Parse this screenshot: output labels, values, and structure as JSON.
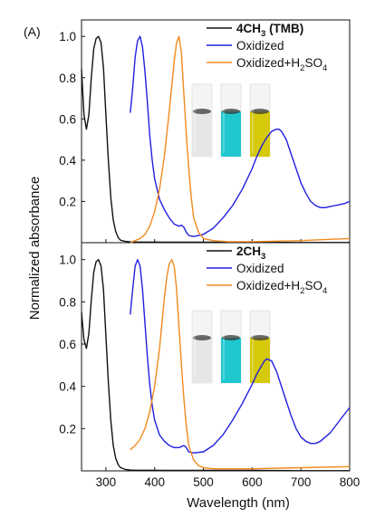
{
  "panel_letter": "(A)",
  "colors": {
    "black": "#111111",
    "blue": "#1f1fe0",
    "orange": "#f28a1e",
    "vial_clear": "#e6e6e6",
    "vial_blue": "#1fc8cf",
    "vial_yellow": "#d6c90a"
  },
  "chart_data": [
    {
      "type": "line",
      "panel": "top",
      "xlim": [
        250,
        800
      ],
      "ylim": [
        0,
        1.08
      ],
      "xlabel": "Wavelength (nm)",
      "ylabel": "Normalized absorbance",
      "yticks": [
        "0.2",
        "0.4",
        "0.6",
        "0.8",
        "1.0"
      ],
      "legend": {
        "placement": "top-right"
      },
      "series": [
        {
          "name": "4CH3 (TMB)",
          "name_main": "4CH",
          "name_sub": "3",
          "name_tail": " (TMB)",
          "bold": true,
          "color_key": "black",
          "x": [
            250,
            255,
            260,
            265,
            270,
            275,
            280,
            285,
            290,
            295,
            300,
            305,
            310,
            315,
            320,
            325,
            330,
            340,
            350,
            360,
            380,
            420,
            500,
            600,
            700,
            800
          ],
          "y": [
            0.84,
            0.62,
            0.55,
            0.62,
            0.8,
            0.94,
            0.99,
            1.0,
            0.97,
            0.85,
            0.62,
            0.4,
            0.22,
            0.11,
            0.055,
            0.025,
            0.012,
            0.006,
            0.004,
            0.003,
            0.003,
            0.002,
            0.002,
            0.002,
            0.001,
            0.001
          ]
        },
        {
          "name": "Oxidized",
          "bold": false,
          "color_key": "blue",
          "x": [
            350,
            355,
            360,
            365,
            370,
            375,
            380,
            385,
            390,
            395,
            400,
            410,
            420,
            430,
            440,
            450,
            455,
            460,
            465,
            470,
            480,
            500,
            520,
            540,
            560,
            580,
            600,
            610,
            620,
            630,
            640,
            650,
            655,
            660,
            670,
            680,
            690,
            700,
            710,
            720,
            730,
            740,
            750,
            760,
            770,
            780,
            790,
            800
          ],
          "y": [
            0.63,
            0.75,
            0.9,
            0.98,
            1.0,
            0.95,
            0.83,
            0.68,
            0.52,
            0.4,
            0.31,
            0.21,
            0.16,
            0.12,
            0.09,
            0.08,
            0.085,
            0.075,
            0.05,
            0.035,
            0.03,
            0.04,
            0.07,
            0.12,
            0.18,
            0.26,
            0.36,
            0.42,
            0.47,
            0.51,
            0.54,
            0.55,
            0.55,
            0.54,
            0.5,
            0.43,
            0.36,
            0.29,
            0.24,
            0.2,
            0.18,
            0.17,
            0.17,
            0.175,
            0.18,
            0.185,
            0.19,
            0.2
          ]
        },
        {
          "name": "Oxidized+H2SO4",
          "name_main": "Oxidized+H",
          "name_sub": "2",
          "name_tail": "SO",
          "name_sub2": "4",
          "bold": false,
          "color_key": "orange",
          "x": [
            350,
            360,
            370,
            380,
            390,
            400,
            410,
            420,
            430,
            435,
            440,
            445,
            450,
            455,
            460,
            465,
            470,
            475,
            480,
            490,
            500,
            520,
            550,
            600,
            700,
            800
          ],
          "y": [
            0.0,
            0.01,
            0.02,
            0.04,
            0.08,
            0.15,
            0.26,
            0.42,
            0.64,
            0.76,
            0.88,
            0.97,
            1.0,
            0.92,
            0.72,
            0.52,
            0.36,
            0.22,
            0.12,
            0.05,
            0.02,
            0.01,
            0.005,
            0.005,
            0.01,
            0.02
          ]
        }
      ]
    },
    {
      "type": "line",
      "panel": "bottom",
      "xlim": [
        250,
        800
      ],
      "ylim": [
        0,
        1.08
      ],
      "xlabel": "Wavelength (nm)",
      "ylabel": "Normalized absorbance",
      "xticks": [
        "300",
        "400",
        "500",
        "600",
        "700",
        "800"
      ],
      "yticks": [
        "0.2",
        "0.4",
        "0.6",
        "0.8",
        "1.0"
      ],
      "legend": {
        "placement": "top-right"
      },
      "series": [
        {
          "name": "2CH3",
          "name_main": "2CH",
          "name_sub": "3",
          "name_tail": "",
          "bold": true,
          "color_key": "black",
          "x": [
            250,
            255,
            260,
            265,
            270,
            275,
            280,
            285,
            290,
            295,
            300,
            305,
            310,
            315,
            320,
            325,
            330,
            340,
            350,
            360,
            380,
            420,
            500,
            600,
            700,
            800
          ],
          "y": [
            0.75,
            0.62,
            0.58,
            0.65,
            0.81,
            0.94,
            0.99,
            1.0,
            0.97,
            0.86,
            0.64,
            0.42,
            0.24,
            0.12,
            0.06,
            0.03,
            0.015,
            0.007,
            0.004,
            0.003,
            0.003,
            0.002,
            0.002,
            0.002,
            0.001,
            0.001
          ]
        },
        {
          "name": "Oxidized",
          "bold": false,
          "color_key": "blue",
          "x": [
            350,
            355,
            360,
            365,
            370,
            375,
            380,
            385,
            390,
            395,
            400,
            410,
            420,
            430,
            440,
            450,
            460,
            465,
            470,
            480,
            500,
            520,
            540,
            560,
            580,
            600,
            610,
            620,
            625,
            630,
            640,
            650,
            660,
            670,
            680,
            690,
            700,
            710,
            720,
            730,
            740,
            750,
            760,
            770,
            780,
            790,
            800
          ],
          "y": [
            0.74,
            0.86,
            0.97,
            1.0,
            0.97,
            0.86,
            0.7,
            0.54,
            0.41,
            0.31,
            0.24,
            0.17,
            0.14,
            0.12,
            0.11,
            0.11,
            0.12,
            0.11,
            0.09,
            0.085,
            0.09,
            0.12,
            0.17,
            0.24,
            0.32,
            0.41,
            0.46,
            0.5,
            0.52,
            0.53,
            0.52,
            0.47,
            0.4,
            0.33,
            0.26,
            0.2,
            0.16,
            0.14,
            0.13,
            0.13,
            0.14,
            0.16,
            0.18,
            0.21,
            0.24,
            0.27,
            0.3
          ]
        },
        {
          "name": "Oxidized+H2SO4",
          "name_main": "Oxidized+H",
          "name_sub": "2",
          "name_tail": "SO",
          "name_sub2": "4",
          "bold": false,
          "color_key": "orange",
          "x": [
            350,
            360,
            370,
            380,
            390,
            400,
            410,
            415,
            420,
            425,
            430,
            435,
            440,
            445,
            450,
            455,
            460,
            465,
            470,
            480,
            490,
            500,
            520,
            550,
            600,
            700,
            800
          ],
          "y": [
            0.1,
            0.12,
            0.15,
            0.2,
            0.28,
            0.4,
            0.58,
            0.7,
            0.82,
            0.92,
            0.98,
            1.0,
            0.97,
            0.86,
            0.68,
            0.5,
            0.34,
            0.21,
            0.12,
            0.05,
            0.025,
            0.015,
            0.01,
            0.01,
            0.01,
            0.015,
            0.02
          ]
        }
      ]
    }
  ]
}
